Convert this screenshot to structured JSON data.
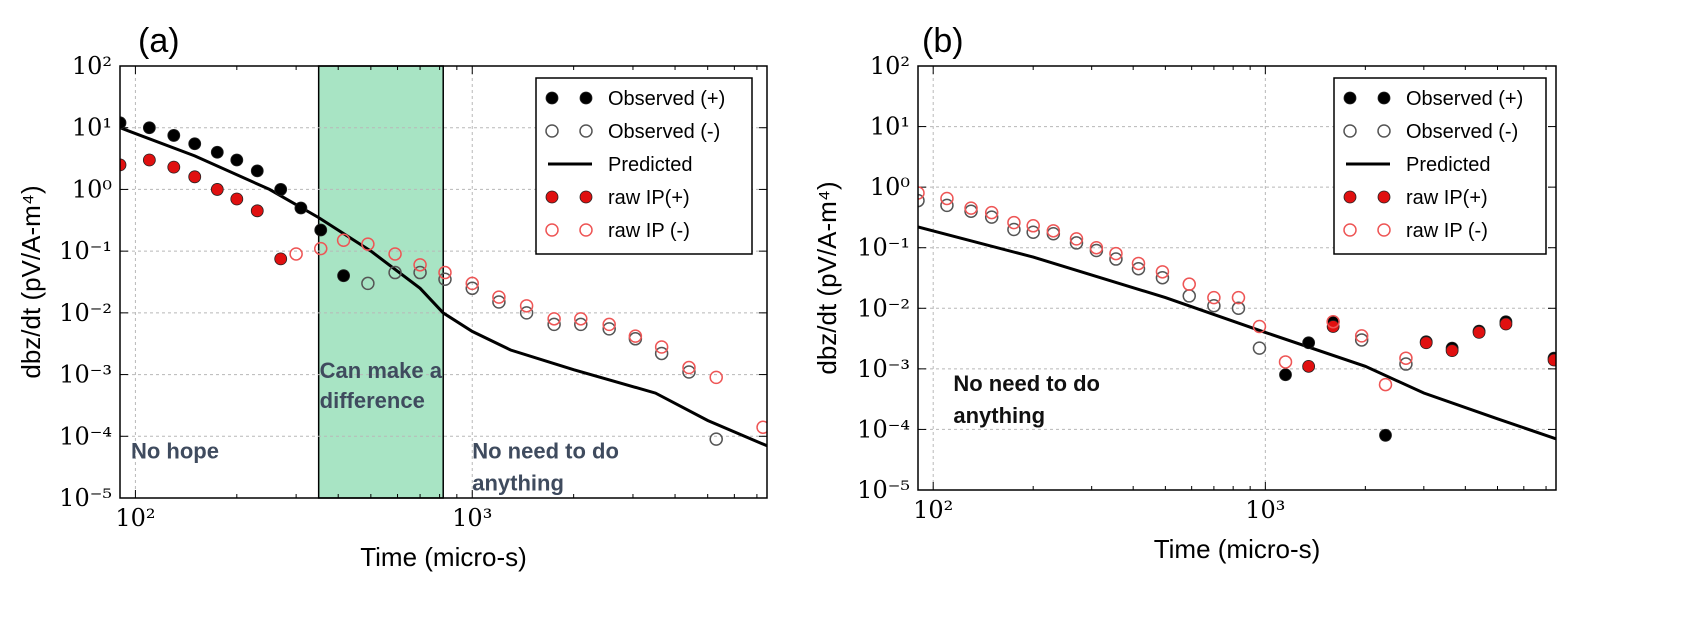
{
  "chart_data": [
    {
      "type": "scatter",
      "panel_label": "(a)",
      "xlabel": "Time (micro-s)",
      "ylabel": "dbz/dt (pV/A-m⁴)",
      "xscale": "log",
      "yscale": "log",
      "xlim": [
        90,
        7500
      ],
      "ylim": [
        1e-05,
        100
      ],
      "grid": true,
      "legend_position": "top-right",
      "x_tick_labels": [
        {
          "value": 100,
          "text": "10²"
        },
        {
          "value": 1000,
          "text": "10³"
        }
      ],
      "y_tick_labels": [
        {
          "value": 100,
          "text": "10²"
        },
        {
          "value": 10,
          "text": "10¹"
        },
        {
          "value": 1,
          "text": "10⁰"
        },
        {
          "value": 0.1,
          "text": "10⁻¹"
        },
        {
          "value": 0.01,
          "text": "10⁻²"
        },
        {
          "value": 0.001,
          "text": "10⁻³"
        },
        {
          "value": 0.0001,
          "text": "10⁻⁴"
        },
        {
          "value": 1e-05,
          "text": "10⁻⁵"
        }
      ],
      "highlight_band": {
        "x_range": [
          350,
          820
        ],
        "label": "Can make a difference",
        "color": "#a8e4c4"
      },
      "annotations": [
        {
          "text": "No hope",
          "x": 97,
          "y": 0.0001,
          "color": "#3f4b5e"
        },
        {
          "text": "No need to do anything",
          "x": 1000,
          "y": 0.0001,
          "color": "#3f4b5e"
        }
      ],
      "series": [
        {
          "name": "Observed (+)",
          "marker": "filled",
          "color": "#000000",
          "x": [
            90,
            110,
            130,
            150,
            175,
            200,
            230,
            270,
            310,
            355,
            415
          ],
          "y": [
            12,
            10,
            7.5,
            5.5,
            4,
            3,
            2,
            1,
            0.5,
            0.22,
            0.04
          ]
        },
        {
          "name": "Observed (-)",
          "marker": "open",
          "color": "#555555",
          "x": [
            490,
            590,
            700,
            830,
            1000,
            1200,
            1450,
            1750,
            2100,
            2550,
            3050,
            3650,
            4400,
            5300
          ],
          "y": [
            0.03,
            0.045,
            0.045,
            0.035,
            0.025,
            0.015,
            0.01,
            0.0065,
            0.0065,
            0.0055,
            0.0038,
            0.0022,
            0.0011,
            9e-05
          ]
        },
        {
          "name": "Predicted",
          "type": "line",
          "color": "#000000",
          "x": [
            90,
            150,
            250,
            350,
            500,
            700,
            820,
            1000,
            1300,
            2000,
            3500,
            5000,
            7500
          ],
          "y": [
            10,
            3.5,
            1,
            0.35,
            0.1,
            0.025,
            0.01,
            0.005,
            0.0025,
            0.0012,
            0.0005,
            0.00018,
            7e-05
          ]
        },
        {
          "name": "raw IP(+)",
          "marker": "filled",
          "color": "#e01010",
          "x": [
            90,
            110,
            130,
            150,
            175,
            200,
            230,
            270
          ],
          "y": [
            2.5,
            3,
            2.3,
            1.6,
            1,
            0.7,
            0.45,
            0.075
          ]
        },
        {
          "name": "raw IP (-)",
          "marker": "open",
          "color": "#ee5555",
          "x": [
            300,
            355,
            415,
            490,
            590,
            700,
            830,
            1000,
            1200,
            1450,
            1750,
            2100,
            2550,
            3050,
            3650,
            4400,
            5300,
            7300
          ],
          "y": [
            0.09,
            0.11,
            0.15,
            0.13,
            0.09,
            0.06,
            0.045,
            0.03,
            0.018,
            0.013,
            0.008,
            0.008,
            0.0065,
            0.0042,
            0.0028,
            0.0013,
            0.0009,
            0.00014
          ]
        }
      ]
    },
    {
      "type": "scatter",
      "panel_label": "(b)",
      "xlabel": "Time (micro-s)",
      "ylabel": "dbz/dt (pV/A-m⁴)",
      "xscale": "log",
      "yscale": "log",
      "xlim": [
        90,
        7500
      ],
      "ylim": [
        1e-05,
        100
      ],
      "grid": true,
      "legend_position": "top-right",
      "x_tick_labels": [
        {
          "value": 100,
          "text": "10²"
        },
        {
          "value": 1000,
          "text": "10³"
        }
      ],
      "y_tick_labels": [
        {
          "value": 100,
          "text": "10²"
        },
        {
          "value": 10,
          "text": "10¹"
        },
        {
          "value": 1,
          "text": "10⁰"
        },
        {
          "value": 0.1,
          "text": "10⁻¹"
        },
        {
          "value": 0.01,
          "text": "10⁻²"
        },
        {
          "value": 0.001,
          "text": "10⁻³"
        },
        {
          "value": 0.0001,
          "text": "10⁻⁴"
        },
        {
          "value": 1e-05,
          "text": "10⁻⁵"
        }
      ],
      "annotations": [
        {
          "text": "No need to do anything",
          "x": 115,
          "y": 0.001,
          "color": "#111111"
        }
      ],
      "series": [
        {
          "name": "Observed (+)",
          "marker": "filled",
          "color": "#000000",
          "x": [
            1150,
            1350,
            1600,
            2300,
            3050,
            3650,
            4400,
            5300,
            7400
          ],
          "y": [
            0.0008,
            0.0027,
            0.006,
            8e-05,
            0.0028,
            0.0022,
            0.0042,
            0.006,
            0.0015
          ]
        },
        {
          "name": "Observed (-)",
          "marker": "open",
          "color": "#555555",
          "x": [
            90,
            110,
            130,
            150,
            175,
            200,
            230,
            270,
            310,
            355,
            415,
            490,
            590,
            700,
            830,
            960,
            1950,
            2650
          ],
          "y": [
            0.6,
            0.5,
            0.4,
            0.32,
            0.2,
            0.18,
            0.17,
            0.12,
            0.09,
            0.065,
            0.045,
            0.032,
            0.016,
            0.011,
            0.01,
            0.0022,
            0.003,
            0.0012
          ]
        },
        {
          "name": "Predicted",
          "type": "line",
          "color": "#000000",
          "x": [
            90,
            200,
            500,
            1000,
            2000,
            3000,
            5000,
            7500
          ],
          "y": [
            0.22,
            0.07,
            0.015,
            0.004,
            0.0011,
            0.0004,
            0.00015,
            7e-05
          ]
        },
        {
          "name": "raw IP(+)",
          "marker": "filled",
          "color": "#e01010",
          "x": [
            1350,
            1600,
            3050,
            3650,
            4400,
            5300,
            7400
          ],
          "y": [
            0.0011,
            0.005,
            0.0027,
            0.002,
            0.004,
            0.0055,
            0.0014
          ]
        },
        {
          "name": "raw IP (-)",
          "marker": "open",
          "color": "#ee5555",
          "x": [
            90,
            110,
            130,
            150,
            175,
            200,
            230,
            270,
            310,
            355,
            415,
            490,
            590,
            700,
            830,
            960,
            1150,
            1600,
            1950,
            2300,
            2650
          ],
          "y": [
            0.8,
            0.65,
            0.45,
            0.38,
            0.26,
            0.23,
            0.19,
            0.14,
            0.1,
            0.08,
            0.055,
            0.04,
            0.025,
            0.015,
            0.015,
            0.005,
            0.0013,
            0.006,
            0.0035,
            0.00055,
            0.0015
          ]
        }
      ]
    }
  ]
}
